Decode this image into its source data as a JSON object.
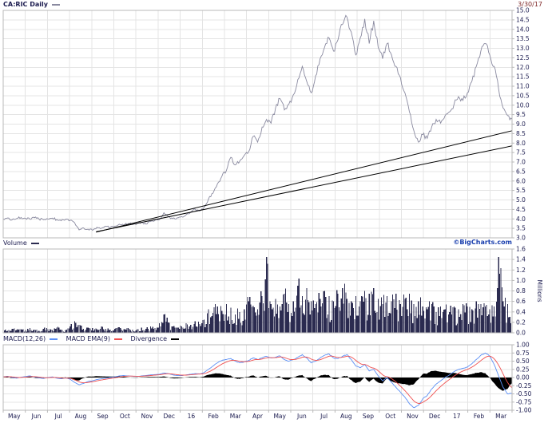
{
  "header": {
    "symbol_label": "CA:RIC Daily",
    "date": "3/30/17"
  },
  "volume_header": "Volume",
  "copyright": "©BigCharts.com",
  "macd_legend": {
    "macd_label": "MACD(12,26)",
    "ema_label": "MACD EMA(9)",
    "divergence_label": "Divergence"
  },
  "colors": {
    "price_line": "#8a8aa0",
    "trendline": "#000000",
    "volume_bar": "#2b2b50",
    "macd_line": "#5b8ff5",
    "ema_line": "#f05050",
    "divergence_fill": "#000000",
    "grid": "#e4e4e4",
    "panel_border": "#b8b8b8",
    "tick_text": "#1a1a4e",
    "header_text": "#1a1a4e",
    "date_text": "#7a1f1f",
    "copyright_text": "#1a3fae"
  },
  "chart_data": [
    {
      "type": "line",
      "title": "CA:RIC Daily",
      "ylabel": "",
      "ylim": [
        3.0,
        15.0
      ],
      "y_ticks": [
        15.0,
        14.5,
        14.0,
        13.5,
        13.0,
        12.5,
        12.0,
        11.5,
        11.0,
        10.5,
        10.0,
        9.5,
        9.0,
        8.5,
        8.0,
        7.5,
        7.0,
        6.5,
        6.0,
        5.5,
        5.0,
        4.5,
        4.0,
        3.5,
        3.0
      ],
      "x_tick_labels": [
        "May",
        "Jun",
        "Jul",
        "Aug",
        "Sep",
        "Oct",
        "Nov",
        "Dec",
        "16",
        "Feb",
        "Mar",
        "Apr",
        "May",
        "Jun",
        "Jul",
        "Aug",
        "Sep",
        "Oct",
        "Nov",
        "Dec",
        "17",
        "Feb",
        "Mar"
      ],
      "grid": true,
      "legend_position": "top-left",
      "series": [
        {
          "name": "price",
          "values": [
            4.0,
            4.05,
            3.95,
            4.02,
            4.08,
            4.03,
            3.98,
            4.06,
            4.0,
            3.95,
            4.0,
            4.04,
            3.96,
            3.9,
            3.98,
            3.92,
            3.8,
            3.42,
            3.52,
            3.46,
            3.4,
            3.56,
            3.5,
            3.62,
            3.55,
            3.62,
            3.72,
            3.66,
            3.76,
            3.7,
            3.76,
            3.82,
            3.72,
            3.86,
            3.92,
            3.96,
            4.32,
            4.12,
            4.02,
            4.06,
            4.12,
            4.22,
            4.36,
            4.52,
            4.42,
            4.62,
            5.05,
            5.35,
            5.85,
            6.25,
            6.55,
            7.25,
            6.85,
            7.05,
            7.35,
            7.55,
            8.35,
            8.05,
            8.85,
            9.25,
            9.05,
            9.85,
            10.35,
            9.75,
            10.05,
            10.55,
            11.35,
            12.05,
            11.25,
            10.65,
            11.55,
            12.45,
            13.05,
            13.55,
            12.85,
            13.45,
            14.25,
            14.65,
            13.85,
            12.65,
            13.55,
            14.55,
            13.25,
            14.45,
            13.05,
            12.45,
            13.25,
            12.65,
            12.05,
            11.45,
            10.65,
            9.65,
            8.65,
            8.05,
            8.45,
            8.25,
            8.85,
            9.25,
            9.05,
            9.45,
            9.65,
            10.05,
            10.45,
            10.25,
            10.65,
            11.25,
            12.05,
            12.85,
            13.25,
            12.65,
            12.05,
            10.85,
            9.85,
            9.45,
            9.25
          ]
        }
      ],
      "trendlines": [
        {
          "from": [
            4.2,
            3.3
          ],
          "to": [
            23,
            8.65
          ]
        },
        {
          "from": [
            4.2,
            3.32
          ],
          "to": [
            23,
            7.85
          ]
        }
      ]
    },
    {
      "type": "bar",
      "title": "Volume",
      "ylabel": "Millions",
      "ylim": [
        0.0,
        1.6
      ],
      "y_ticks": [
        1.6,
        1.4,
        1.2,
        1.0,
        0.8,
        0.6,
        0.4,
        0.2,
        0.0
      ],
      "grid": true,
      "values": [
        0.06,
        0.04,
        0.08,
        0.05,
        0.07,
        0.05,
        0.09,
        0.06,
        0.04,
        0.08,
        0.07,
        0.05,
        0.1,
        0.06,
        0.05,
        0.12,
        0.22,
        0.15,
        0.08,
        0.1,
        0.09,
        0.07,
        0.12,
        0.08,
        0.06,
        0.08,
        0.11,
        0.07,
        0.09,
        0.06,
        0.07,
        0.1,
        0.08,
        0.12,
        0.09,
        0.18,
        0.35,
        0.2,
        0.12,
        0.1,
        0.12,
        0.18,
        0.15,
        0.22,
        0.17,
        0.25,
        0.45,
        0.38,
        0.5,
        0.42,
        0.55,
        0.48,
        0.35,
        0.4,
        0.45,
        0.6,
        0.52,
        0.45,
        0.7,
        1.45,
        0.55,
        0.65,
        0.5,
        0.75,
        0.55,
        0.6,
        0.9,
        0.7,
        0.85,
        0.6,
        0.55,
        0.65,
        0.8,
        0.7,
        0.6,
        0.75,
        0.85,
        0.65,
        0.6,
        0.7,
        0.6,
        0.8,
        0.75,
        0.85,
        0.65,
        0.55,
        0.7,
        0.6,
        0.75,
        0.55,
        0.65,
        0.75,
        0.55,
        0.6,
        0.5,
        0.45,
        0.55,
        0.4,
        0.5,
        0.45,
        0.4,
        0.5,
        0.45,
        0.55,
        0.5,
        0.45,
        0.6,
        0.55,
        0.5,
        0.45,
        0.5,
        1.45,
        0.6,
        0.55,
        0.4
      ]
    },
    {
      "type": "line",
      "title": "MACD(12,26)",
      "ylabel": "",
      "ylim": [
        -1.0,
        1.0
      ],
      "y_ticks": [
        1.0,
        0.75,
        0.5,
        0.25,
        0.0,
        -0.25,
        -0.5,
        -0.75,
        -1.0
      ],
      "grid": true,
      "legend": [
        "MACD(12,26)",
        "MACD EMA(9)",
        "Divergence"
      ],
      "series": [
        {
          "name": "MACD(12,26)",
          "values": [
            0.02,
            0.04,
            0.0,
            -0.02,
            0.01,
            0.03,
            0.05,
            0.02,
            -0.01,
            -0.03,
            0.0,
            0.02,
            -0.02,
            -0.04,
            -0.01,
            -0.05,
            -0.15,
            -0.22,
            -0.18,
            -0.12,
            -0.1,
            -0.06,
            -0.04,
            -0.02,
            0.0,
            0.02,
            0.05,
            0.06,
            0.05,
            0.04,
            0.03,
            0.05,
            0.06,
            0.08,
            0.09,
            0.1,
            0.14,
            0.12,
            0.08,
            0.06,
            0.06,
            0.08,
            0.1,
            0.12,
            0.11,
            0.15,
            0.25,
            0.35,
            0.45,
            0.52,
            0.55,
            0.58,
            0.5,
            0.45,
            0.48,
            0.52,
            0.6,
            0.55,
            0.6,
            0.65,
            0.6,
            0.62,
            0.66,
            0.55,
            0.5,
            0.55,
            0.62,
            0.7,
            0.6,
            0.45,
            0.5,
            0.6,
            0.68,
            0.72,
            0.6,
            0.58,
            0.65,
            0.7,
            0.55,
            0.35,
            0.3,
            0.4,
            0.2,
            0.25,
            0.05,
            -0.1,
            0.0,
            -0.15,
            -0.3,
            -0.45,
            -0.6,
            -0.8,
            -0.92,
            -0.85,
            -0.65,
            -0.55,
            -0.35,
            -0.2,
            -0.1,
            0.0,
            0.08,
            0.18,
            0.25,
            0.28,
            0.32,
            0.42,
            0.55,
            0.68,
            0.75,
            0.65,
            0.4,
            0.05,
            -0.3,
            -0.5,
            -0.48
          ]
        },
        {
          "name": "MACD EMA(9)",
          "derived": "ema9_of_macd"
        },
        {
          "name": "Divergence",
          "derived": "macd_minus_ema"
        }
      ]
    }
  ]
}
